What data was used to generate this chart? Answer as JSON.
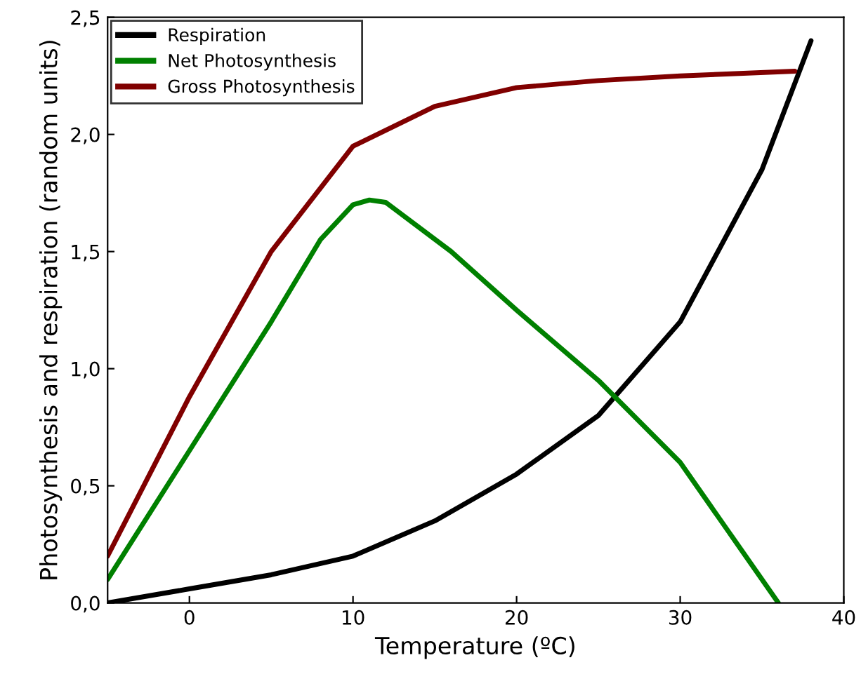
{
  "chart_data": {
    "type": "line",
    "xlabel": "Temperature (ºC)",
    "ylabel": "Photosynthesis and respiration (random units)",
    "xlim": [
      -5,
      40
    ],
    "ylim": [
      0,
      2.5
    ],
    "xticks": [
      0,
      10,
      20,
      30,
      40
    ],
    "yticks": [
      {
        "value": 0,
        "label": "0,0"
      },
      {
        "value": 0.5,
        "label": "0,5"
      },
      {
        "value": 1,
        "label": "1,0"
      },
      {
        "value": 1.5,
        "label": "1,5"
      },
      {
        "value": 2,
        "label": "2,0"
      },
      {
        "value": 2.5,
        "label": "2,5"
      }
    ],
    "grid": false,
    "legend": "top left",
    "marker": "none",
    "line_style": "solid",
    "series": [
      {
        "name": "Respiration",
        "color": "#000000",
        "x": [
          -5,
          0,
          5,
          10,
          15,
          20,
          25,
          30,
          35,
          38
        ],
        "values": [
          0,
          0.06,
          0.12,
          0.2,
          0.35,
          0.55,
          0.8,
          1.2,
          1.85,
          2.4
        ]
      },
      {
        "name": "Net Photosynthesis",
        "color": "#008000",
        "x": [
          -5,
          0,
          5,
          8,
          10,
          11,
          12,
          16,
          20,
          25,
          30,
          33,
          36
        ],
        "values": [
          0.1,
          0.65,
          1.2,
          1.55,
          1.7,
          1.72,
          1.71,
          1.5,
          1.25,
          0.95,
          0.6,
          0.3,
          0
        ]
      },
      {
        "name": "Gross Photosynthesis",
        "color": "#800000",
        "x": [
          -5,
          0,
          5,
          10,
          15,
          20,
          25,
          30,
          37
        ],
        "values": [
          0.2,
          0.88,
          1.5,
          1.95,
          2.12,
          2.2,
          2.23,
          2.25,
          2.27
        ]
      }
    ]
  }
}
